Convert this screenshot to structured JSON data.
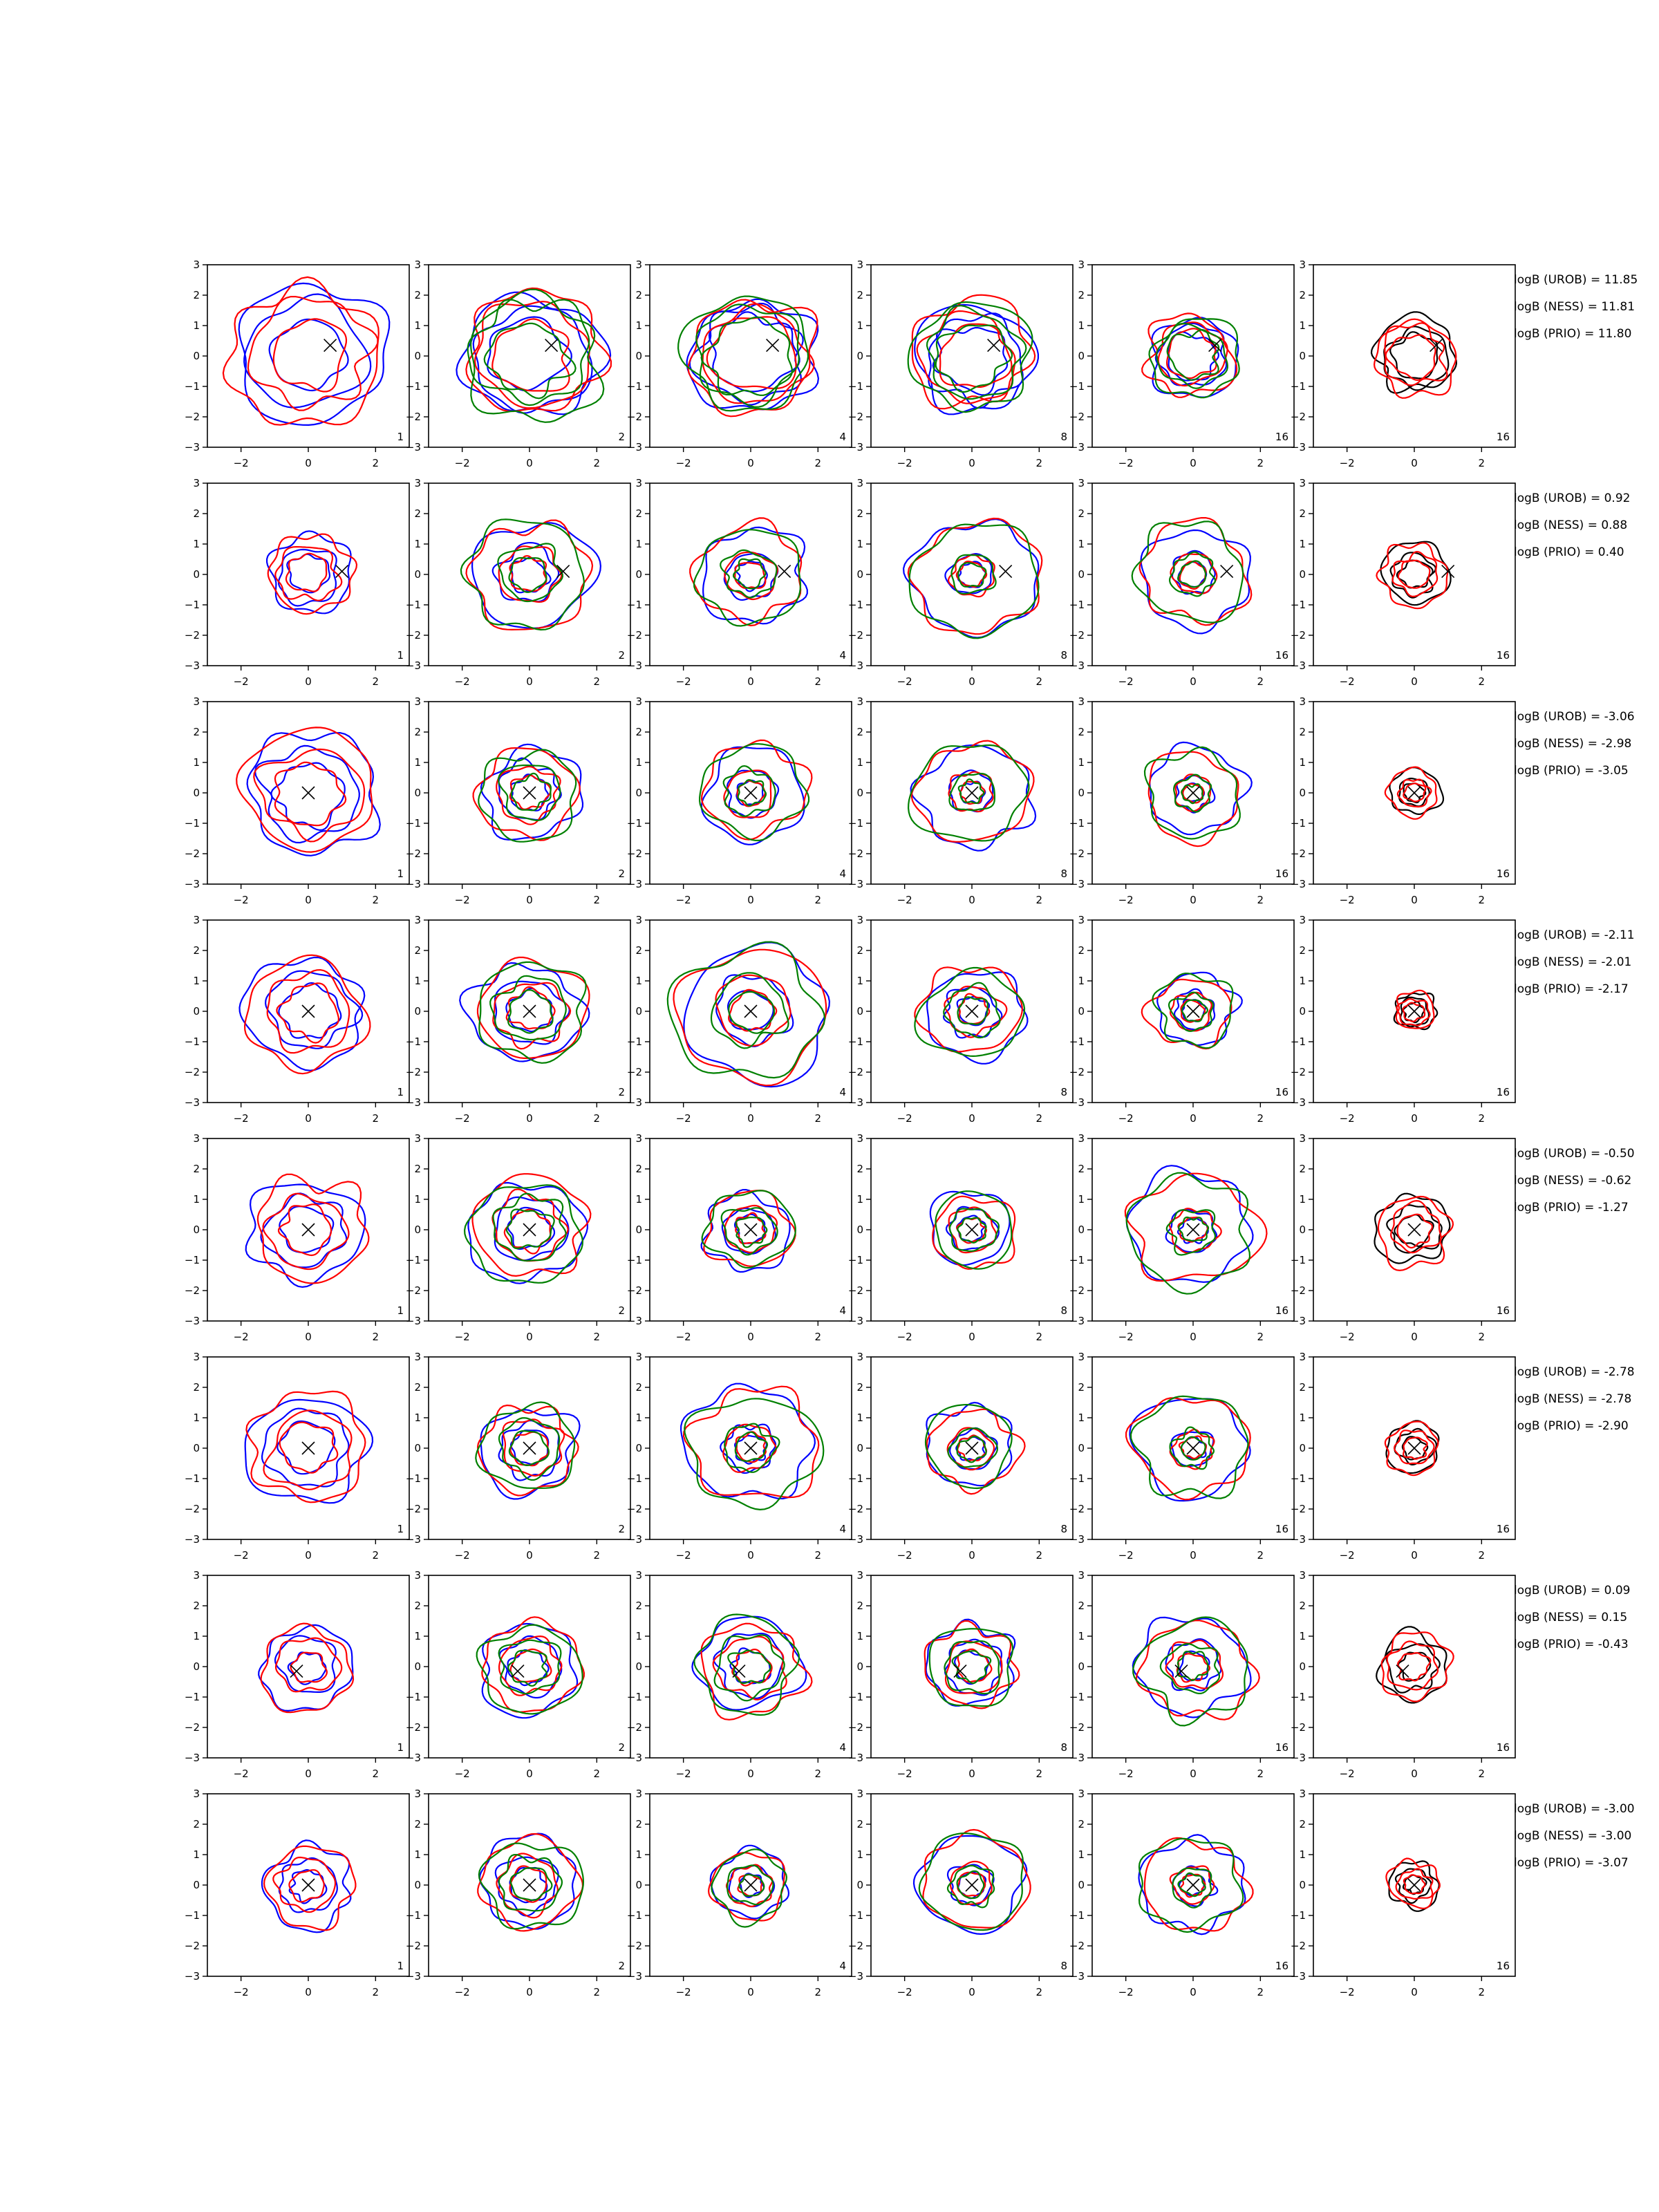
{
  "chart_data": {
    "type": "contour-grid",
    "layout": {
      "rows": 8,
      "cols": 6
    },
    "axes": {
      "xlim": [
        -3,
        3
      ],
      "ylim": [
        -3,
        3
      ],
      "xticks": [
        -2,
        0,
        2
      ],
      "yticks": [
        -3,
        -2,
        -1,
        0,
        1,
        2,
        3
      ],
      "xtick_labels": [
        "−2",
        "0",
        "2"
      ],
      "ytick_labels": [
        "−3",
        "−2",
        "−1",
        "0",
        "1",
        "2",
        "3"
      ],
      "grid": false
    },
    "series_colors": {
      "blue": "#0000ff",
      "red": "#ff0000",
      "green": "#008000",
      "black": "#000000"
    },
    "column_corner_labels": [
      "1",
      "2",
      "4",
      "8",
      "16",
      "16"
    ],
    "column_palettes": [
      [
        "blue",
        "red"
      ],
      [
        "blue",
        "red",
        "green"
      ],
      [
        "blue",
        "red",
        "green"
      ],
      [
        "blue",
        "red",
        "green"
      ],
      [
        "blue",
        "red",
        "green"
      ],
      [
        "black",
        "red"
      ]
    ],
    "rows": [
      {
        "marker": {
          "x": 0.65,
          "y": 0.35
        },
        "contour_radii": [
          [
            1.1,
            1.75,
            2.25
          ],
          [
            1.15,
            1.7,
            2.0
          ],
          [
            1.25,
            1.55,
            1.85
          ],
          [
            1.05,
            1.4,
            1.75
          ],
          [
            0.75,
            1.0,
            1.3
          ],
          [
            0.7,
            0.95,
            1.2
          ]
        ],
        "logB": [
          "logB (UROB) = 11.85",
          "logB (NESS) = 11.81",
          "logB (PRIO) = 11.80"
        ]
      },
      {
        "marker": {
          "x": 1.0,
          "y": 0.1
        },
        "contour_radii": [
          [
            0.6,
            0.9,
            1.25
          ],
          [
            0.55,
            0.9,
            1.75
          ],
          [
            0.45,
            0.75,
            1.55
          ],
          [
            0.4,
            0.65,
            1.85
          ],
          [
            0.4,
            0.65,
            1.6
          ],
          [
            0.45,
            0.65,
            1.0
          ]
        ],
        "logB": [
          "logB (UROB) = 0.92",
          "logB (NESS) = 0.88",
          "logB (PRIO) = 0.40"
        ]
      },
      {
        "marker": {
          "x": 0.0,
          "y": 0.0
        },
        "contour_radii": [
          [
            1.0,
            1.45,
            1.95
          ],
          [
            0.55,
            0.9,
            1.45
          ],
          [
            0.4,
            0.75,
            1.5
          ],
          [
            0.35,
            0.65,
            1.65
          ],
          [
            0.3,
            0.55,
            1.4
          ],
          [
            0.3,
            0.45,
            0.75
          ]
        ],
        "logB": [
          "logB (UROB) = -3.06",
          "logB (NESS) = -2.98",
          "logB (PRIO) = -3.05"
        ]
      },
      {
        "marker": {
          "x": 0.0,
          "y": 0.0
        },
        "contour_radii": [
          [
            0.85,
            1.25,
            1.75
          ],
          [
            0.65,
            1.05,
            1.6
          ],
          [
            0.65,
            1.1,
            2.15
          ],
          [
            0.45,
            0.8,
            1.45
          ],
          [
            0.35,
            0.6,
            1.15
          ],
          [
            0.3,
            0.45,
            0.6
          ]
        ],
        "logB": [
          "logB (UROB) = -2.11",
          "logB (NESS) = -2.01",
          "logB (PRIO) = -2.17"
        ]
      },
      {
        "marker": {
          "x": 0.0,
          "y": 0.0
        },
        "contour_radii": [
          [
            0.75,
            1.15,
            1.65
          ],
          [
            0.65,
            1.05,
            1.65
          ],
          [
            0.45,
            0.75,
            1.25
          ],
          [
            0.4,
            0.7,
            1.2
          ],
          [
            0.4,
            0.7,
            1.8
          ],
          [
            0.5,
            0.75,
            1.1
          ]
        ],
        "logB": [
          "logB (UROB) = -0.50",
          "logB (NESS) = -0.62",
          "logB (PRIO) = -1.27"
        ]
      },
      {
        "marker": {
          "x": 0.0,
          "y": 0.0
        },
        "contour_radii": [
          [
            0.8,
            1.25,
            1.75
          ],
          [
            0.55,
            0.9,
            1.4
          ],
          [
            0.45,
            0.75,
            1.85
          ],
          [
            0.4,
            0.65,
            1.3
          ],
          [
            0.35,
            0.6,
            1.65
          ],
          [
            0.35,
            0.55,
            0.8
          ]
        ],
        "logB": [
          "logB (UROB) = -2.78",
          "logB (NESS) = -2.78",
          "logB (PRIO) = -2.90"
        ]
      },
      {
        "marker": {
          "x": -0.35,
          "y": -0.15
        },
        "contour_radii": [
          [
            0.5,
            0.9,
            1.35
          ],
          [
            0.55,
            0.9,
            1.45
          ],
          [
            0.55,
            1.0,
            1.5
          ],
          [
            0.5,
            0.85,
            1.3
          ],
          [
            0.45,
            0.8,
            1.6
          ],
          [
            0.45,
            0.75,
            1.05
          ]
        ],
        "logB": [
          "logB (UROB) = 0.09",
          "logB (NESS) = 0.15",
          "logB (PRIO) = -0.43"
        ]
      },
      {
        "marker": {
          "x": 0.0,
          "y": 0.0
        },
        "contour_radii": [
          [
            0.5,
            0.85,
            1.3
          ],
          [
            0.55,
            0.9,
            1.45
          ],
          [
            0.35,
            0.65,
            1.1
          ],
          [
            0.4,
            0.65,
            1.55
          ],
          [
            0.35,
            0.6,
            1.5
          ],
          [
            0.3,
            0.5,
            0.75
          ]
        ],
        "logB": [
          "logB (UROB) = -3.00",
          "logB (NESS) = -3.00",
          "logB (PRIO) = -3.07"
        ]
      }
    ]
  }
}
